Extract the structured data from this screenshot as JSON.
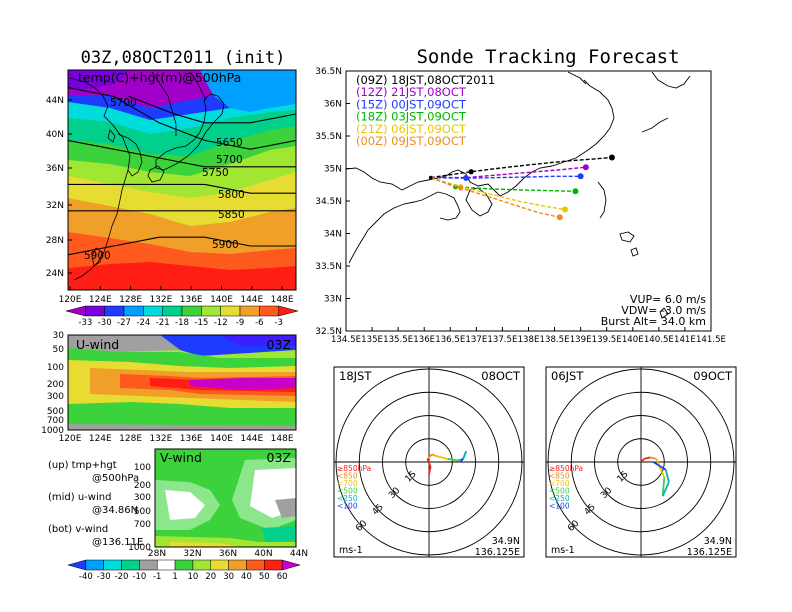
{
  "left": {
    "title": "03Z,08OCT2011 (init)",
    "map_label": "temp(C)+hgt(m)@500hPa",
    "lat_ticks": [
      "44N",
      "40N",
      "36N",
      "32N",
      "28N",
      "24N"
    ],
    "lon_ticks": [
      "120E",
      "124E",
      "128E",
      "132E",
      "136E",
      "140E",
      "144E",
      "148E"
    ],
    "contours": [
      "5700",
      "5650",
      "5700",
      "5750",
      "5800",
      "5850",
      "5900",
      "5900"
    ],
    "temp_scale": [
      "-33",
      "-30",
      "-27",
      "-24",
      "-21",
      "-18",
      "-15",
      "-12",
      "-9",
      "-6",
      "-3"
    ],
    "temp_colors": [
      "#a000c8",
      "#7800dc",
      "#1e3cff",
      "#00a0ff",
      "#00dcdc",
      "#00d08c",
      "#3cd23c",
      "#a0e632",
      "#e6dc32",
      "#f0a028",
      "#ff5a1e",
      "#ff1e14"
    ],
    "uwind": {
      "label": "U-wind",
      "time": "03Z",
      "p_ticks": [
        "30",
        "50",
        "100",
        "200",
        "300",
        "500",
        "700",
        "1000"
      ],
      "x_ticks": [
        "120E",
        "124E",
        "128E",
        "132E",
        "136E",
        "140E",
        "144E",
        "148E"
      ]
    },
    "vwind": {
      "label": "V-wind",
      "time": "03Z",
      "p_ticks": [
        "100",
        "200",
        "300",
        "500",
        "700",
        "1000"
      ],
      "x_ticks": [
        "28N",
        "32N",
        "36N",
        "40N",
        "44N"
      ]
    },
    "legend_notes": [
      {
        "l1": "(up) tmp+hgt",
        "l2": "@500hPa"
      },
      {
        "l1": "(mid) u-wind",
        "l2": "@34.86N"
      },
      {
        "l1": "(bot) v-wind",
        "l2": "@136.11E"
      }
    ],
    "wind_scale": [
      "-40",
      "-30",
      "-20",
      "-10",
      "-1",
      "1",
      "10",
      "20",
      "30",
      "40",
      "50",
      "60"
    ],
    "wind_colors": [
      "#1e3cff",
      "#00a0ff",
      "#00dcdc",
      "#00d08c",
      "#a0a0a0",
      "#ffffff",
      "#3cd23c",
      "#a0e632",
      "#e6dc32",
      "#f0a028",
      "#ff5a1e",
      "#ff1e14",
      "#c800c8"
    ]
  },
  "right": {
    "title": "Sonde Tracking Forecast",
    "lat_ticks": [
      "36.5N",
      "36N",
      "35.5N",
      "35N",
      "34.5N",
      "34N",
      "33.5N",
      "33N",
      "32.5N"
    ],
    "lon_ticks": [
      "134.5E",
      "135E",
      "135.5E",
      "136E",
      "136.5E",
      "137E",
      "137.5E",
      "138E",
      "138.5E",
      "139E",
      "139.5E",
      "140E",
      "140.5E",
      "141E",
      "141.5E"
    ],
    "legend": [
      {
        "text": "(09Z)  18JST,08OCT2011",
        "color": "#000000"
      },
      {
        "text": "(12Z)  21JST,08OCT",
        "color": "#a000c8"
      },
      {
        "text": "(15Z)  00JST,09OCT",
        "color": "#1e3cff"
      },
      {
        "text": "(18Z)  03JST,09OCT",
        "color": "#00b400"
      },
      {
        "text": "(21Z)  06JST,09OCT",
        "color": "#e6c800"
      },
      {
        "text": "(00Z)  09JST,09OCT",
        "color": "#f08c1e"
      }
    ],
    "params": [
      "VUP=  6.0  m/s",
      "VDW= -3.0  m/s",
      "Burst Alt=  34.0  km"
    ],
    "hodo_left": {
      "time": "18JST",
      "date": "08OCT",
      "rings": [
        "15",
        "30",
        "45",
        "60"
      ],
      "unit": "ms-1",
      "lat": "34.9N",
      "lon": "136.125E"
    },
    "hodo_right": {
      "time": "06JST",
      "date": "09OCT",
      "rings": [
        "15",
        "30",
        "45",
        "60"
      ],
      "unit": "ms-1",
      "lat": "34.9N",
      "lon": "136.125E"
    },
    "hodo_legend": [
      {
        "text": "≥850hPa",
        "color": "#ff1e14"
      },
      {
        "text": "<850",
        "color": "#f08c1e"
      },
      {
        "text": "<700",
        "color": "#e6c800"
      },
      {
        "text": "<500",
        "color": "#3cd23c"
      },
      {
        "text": "<250",
        "color": "#00b4b4"
      },
      {
        "text": "<100",
        "color": "#1e3cff"
      }
    ]
  },
  "chart_data": [
    {
      "type": "heatmap",
      "title": "03Z,08OCT2011 (init)",
      "label": "temp(C)+hgt(m)@500hPa",
      "xlim": [
        120,
        150
      ],
      "ylim": [
        22,
        47
      ],
      "color_levels": [
        -33,
        -30,
        -27,
        -24,
        -21,
        -18,
        -15,
        -12,
        -9,
        -6,
        -3
      ],
      "contours": [
        {
          "value": 5650,
          "points": [
            [
              128,
              44
            ],
            [
              134,
              42
            ],
            [
              138,
              41
            ],
            [
              144,
              41
            ],
            [
              150,
              42
            ]
          ]
        },
        {
          "value": 5700,
          "points": [
            [
              120,
              45
            ],
            [
              126,
              44
            ],
            [
              132,
              41
            ],
            [
              138,
              39
            ],
            [
              144,
              38
            ],
            [
              150,
              39
            ]
          ]
        },
        {
          "value": 5750,
          "points": [
            [
              120,
              39
            ],
            [
              126,
              38
            ],
            [
              132,
              37
            ],
            [
              138,
              36
            ],
            [
              144,
              36
            ],
            [
              150,
              36
            ]
          ]
        },
        {
          "value": 5800,
          "points": [
            [
              120,
              34
            ],
            [
              126,
              34
            ],
            [
              132,
              34
            ],
            [
              138,
              34
            ],
            [
              144,
              33
            ],
            [
              150,
              33
            ]
          ]
        },
        {
          "value": 5850,
          "points": [
            [
              120,
              31
            ],
            [
              128,
              31
            ],
            [
              136,
              31
            ],
            [
              144,
              31
            ],
            [
              150,
              31
            ]
          ]
        },
        {
          "value": 5900,
          "points": [
            [
              120,
              26
            ],
            [
              126,
              27
            ],
            [
              132,
              28
            ],
            [
              138,
              28
            ],
            [
              144,
              27
            ],
            [
              150,
              27
            ]
          ]
        }
      ]
    },
    {
      "type": "heatmap",
      "label": "U-wind",
      "time": "03Z",
      "x": "longitude 120E-150E",
      "y": "pressure 1000-30 hPa",
      "color_levels": [
        -40,
        -30,
        -20,
        -10,
        -1,
        1,
        10,
        20,
        30,
        40,
        50,
        60
      ],
      "jet_max_level_hPa": 200
    },
    {
      "type": "heatmap",
      "label": "V-wind",
      "time": "03Z",
      "x": "latitude 28N-44N",
      "y": "pressure 1000-100 hPa",
      "color_levels": [
        -40,
        -30,
        -20,
        -10,
        -1,
        1,
        10,
        20,
        30,
        40,
        50,
        60
      ]
    },
    {
      "type": "line",
      "title": "Sonde Tracking Forecast",
      "xlim": [
        134.5,
        141.5
      ],
      "ylim": [
        32.5,
        36.5
      ],
      "launch": [
        136.125,
        34.86
      ],
      "series": [
        {
          "name": "(09Z)  18JST,08OCT2011",
          "x": [
            136.125,
            136.9,
            137.6,
            138.3,
            138.8,
            139.3,
            139.6
          ],
          "y": [
            34.86,
            34.95,
            35.02,
            35.08,
            35.12,
            35.15,
            35.17
          ]
        },
        {
          "name": "(12Z)  21JST,08OCT",
          "x": [
            136.125,
            136.8,
            137.4,
            138.0,
            138.6,
            139.1
          ],
          "y": [
            34.86,
            34.86,
            34.9,
            34.94,
            34.98,
            35.02
          ]
        },
        {
          "name": "(15Z)  00JST,09OCT",
          "x": [
            136.125,
            136.8,
            137.4,
            138.0,
            138.5,
            139.0
          ],
          "y": [
            34.86,
            34.85,
            34.86,
            34.87,
            34.88,
            34.88
          ]
        },
        {
          "name": "(18Z)  03JST,09OCT",
          "x": [
            136.125,
            136.6,
            137.2,
            137.8,
            138.4,
            138.9
          ],
          "y": [
            34.86,
            34.72,
            34.69,
            34.67,
            34.66,
            34.65
          ]
        },
        {
          "name": "(21Z)  06JST,09OCT",
          "x": [
            136.125,
            136.7,
            137.3,
            137.8,
            138.3,
            138.7
          ],
          "y": [
            34.86,
            34.72,
            34.6,
            34.5,
            34.42,
            34.37
          ]
        },
        {
          "name": "(00Z)  09JST,09OCT",
          "x": [
            136.125,
            136.7,
            137.3,
            137.8,
            138.2,
            138.6
          ],
          "y": [
            34.86,
            34.7,
            34.55,
            34.42,
            34.32,
            34.25
          ]
        }
      ]
    },
    {
      "type": "line",
      "title": "hodograph 18JST 08OCT",
      "rings": [
        15,
        30,
        45,
        60
      ],
      "u": [
        0,
        1,
        -1,
        2,
        4,
        8,
        12,
        18,
        22,
        24,
        22,
        20
      ],
      "v": [
        -8,
        -3,
        2,
        5,
        4,
        3,
        2,
        1,
        2,
        7,
        2,
        0
      ]
    },
    {
      "type": "line",
      "title": "hodograph 06JST 09OCT",
      "rings": [
        15,
        30,
        45,
        60
      ],
      "u": [
        0,
        2,
        6,
        10,
        12,
        15,
        14,
        18,
        16,
        8
      ],
      "v": [
        0,
        2,
        3,
        2,
        -3,
        -10,
        -22,
        -13,
        -5,
        0
      ]
    }
  ]
}
